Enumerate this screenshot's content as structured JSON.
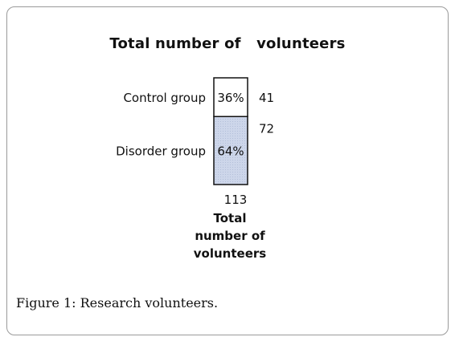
{
  "chart_data": {
    "type": "bar",
    "stacked": true,
    "title": "Total number of   volunteers",
    "categories": [
      "Total number of volunteers"
    ],
    "category_label_lines": [
      "Total",
      "number of",
      "volunteers"
    ],
    "total": 113,
    "series": [
      {
        "name": "Control group",
        "values": [
          41
        ],
        "percent_label": "36%",
        "count_label": "41"
      },
      {
        "name": "Disorder group",
        "values": [
          72
        ],
        "percent_label": "64%",
        "count_label": "72"
      }
    ],
    "ylim": [
      0,
      113
    ],
    "grid": false,
    "legend": "left-labels",
    "colors": {
      "control_fill": "#ffffff",
      "disorder_fill": "#cdd6ea",
      "border": "#111111"
    }
  },
  "caption": {
    "label": "Figure 1:",
    "text": " Research volunteers."
  }
}
